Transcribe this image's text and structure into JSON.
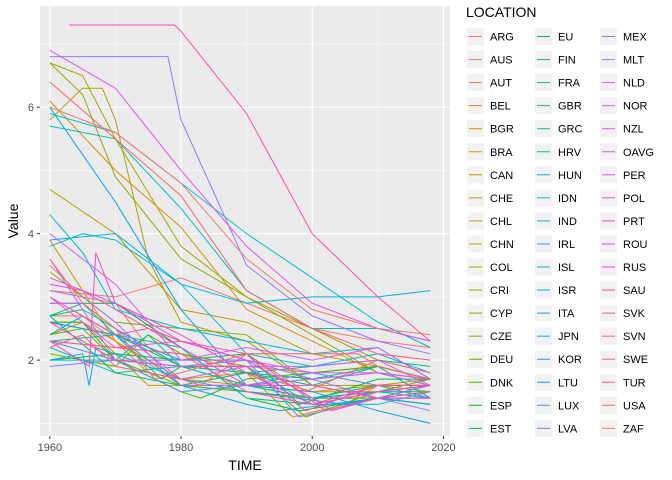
{
  "chart_data": {
    "type": "line",
    "xlabel": "TIME",
    "ylabel": "Value",
    "legend_title": "LOCATION",
    "legend_position": "right",
    "xlim": [
      1958.5,
      2021
    ],
    "ylim": [
      0.8,
      7.6
    ],
    "x_ticks": [
      1960,
      1980,
      2000,
      2020
    ],
    "y_ticks": [
      2,
      4,
      6
    ],
    "background": "#EBEBEB",
    "grid": true,
    "series": [
      {
        "name": "ARG",
        "color": "#F8766D",
        "x": [
          1960,
          1970,
          1980,
          1990,
          2000,
          2010,
          2018
        ],
        "y": [
          3.1,
          3.0,
          3.3,
          2.9,
          2.5,
          2.3,
          2.2
        ]
      },
      {
        "name": "AUS",
        "color": "#F37B59",
        "x": [
          1960,
          1965,
          1970,
          1975,
          1980,
          1990,
          2000,
          2010,
          2018
        ],
        "y": [
          3.5,
          3.0,
          2.9,
          2.2,
          1.9,
          1.9,
          1.8,
          1.9,
          1.7
        ]
      },
      {
        "name": "AUT",
        "color": "#ED813E",
        "x": [
          1960,
          1965,
          1970,
          1980,
          1990,
          2000,
          2010,
          2018
        ],
        "y": [
          2.7,
          2.7,
          2.3,
          1.6,
          1.5,
          1.4,
          1.4,
          1.5
        ]
      },
      {
        "name": "BEL",
        "color": "#E7861B",
        "x": [
          1960,
          1965,
          1970,
          1980,
          1990,
          2000,
          2010,
          2018
        ],
        "y": [
          2.6,
          2.6,
          2.3,
          1.7,
          1.6,
          1.7,
          1.8,
          1.6
        ]
      },
      {
        "name": "BGR",
        "color": "#E08B00",
        "x": [
          1960,
          1970,
          1980,
          1990,
          1997,
          2005,
          2010,
          2018
        ],
        "y": [
          2.3,
          2.2,
          2.1,
          1.8,
          1.1,
          1.3,
          1.6,
          1.6
        ]
      },
      {
        "name": "BRA",
        "color": "#D89000",
        "x": [
          1960,
          1970,
          1980,
          1990,
          2000,
          2010,
          2018
        ],
        "y": [
          6.1,
          5.0,
          4.1,
          2.8,
          2.3,
          1.8,
          1.7
        ]
      },
      {
        "name": "CAN",
        "color": "#CF9400",
        "x": [
          1960,
          1965,
          1970,
          1975,
          1980,
          1990,
          2000,
          2010,
          2018
        ],
        "y": [
          3.9,
          3.1,
          2.3,
          1.8,
          1.7,
          1.8,
          1.5,
          1.6,
          1.5
        ]
      },
      {
        "name": "CHE",
        "color": "#C59900",
        "x": [
          1960,
          1965,
          1970,
          1975,
          1980,
          1990,
          2000,
          2010,
          2018
        ],
        "y": [
          2.4,
          2.6,
          2.1,
          1.6,
          1.6,
          1.6,
          1.5,
          1.5,
          1.5
        ]
      },
      {
        "name": "CHL",
        "color": "#BB9D00",
        "x": [
          1960,
          1970,
          1980,
          1990,
          2000,
          2010,
          2018
        ],
        "y": [
          4.7,
          4.0,
          2.8,
          2.6,
          2.1,
          1.9,
          1.7
        ]
      },
      {
        "name": "CHN",
        "color": "#AFA100",
        "x": [
          1960,
          1965,
          1968,
          1970,
          1975,
          1980,
          1990,
          2000,
          2010,
          2018
        ],
        "y": [
          5.8,
          6.3,
          6.3,
          5.8,
          3.6,
          2.6,
          2.3,
          1.6,
          1.6,
          1.7
        ]
      },
      {
        "name": "COL",
        "color": "#A3A500",
        "x": [
          1960,
          1965,
          1970,
          1980,
          1990,
          2000,
          2010,
          2018
        ],
        "y": [
          6.7,
          6.5,
          5.5,
          3.8,
          3.0,
          2.5,
          2.0,
          1.8
        ]
      },
      {
        "name": "CRI",
        "color": "#96A900",
        "x": [
          1960,
          1965,
          1970,
          1980,
          1990,
          2000,
          2010,
          2018
        ],
        "y": [
          6.7,
          6.2,
          4.9,
          3.6,
          3.0,
          2.4,
          1.8,
          1.7
        ]
      },
      {
        "name": "CYP",
        "color": "#86AC00",
        "x": [
          1960,
          1970,
          1980,
          1990,
          2000,
          2010,
          2018
        ],
        "y": [
          3.4,
          2.6,
          2.5,
          2.4,
          1.6,
          1.4,
          1.3
        ]
      },
      {
        "name": "CZE",
        "color": "#74B000",
        "x": [
          1960,
          1970,
          1975,
          1980,
          1990,
          1999,
          2010,
          2018
        ],
        "y": [
          2.1,
          1.9,
          2.4,
          2.1,
          1.9,
          1.1,
          1.5,
          1.7
        ]
      },
      {
        "name": "DEU",
        "color": "#5EB300",
        "x": [
          1960,
          1965,
          1970,
          1980,
          1990,
          2000,
          2010,
          2018
        ],
        "y": [
          2.4,
          2.5,
          2.0,
          1.6,
          1.5,
          1.4,
          1.4,
          1.6
        ]
      },
      {
        "name": "DNK",
        "color": "#3CB500",
        "x": [
          1960,
          1965,
          1970,
          1980,
          1983,
          1990,
          2000,
          2010,
          2018
        ],
        "y": [
          2.6,
          2.6,
          2.0,
          1.5,
          1.4,
          1.7,
          1.8,
          1.9,
          1.7
        ]
      },
      {
        "name": "ESP",
        "color": "#00B81F",
        "x": [
          1960,
          1965,
          1970,
          1980,
          1990,
          1998,
          2010,
          2018
        ],
        "y": [
          2.9,
          2.9,
          2.9,
          2.2,
          1.4,
          1.2,
          1.4,
          1.3
        ]
      },
      {
        "name": "EST",
        "color": "#00BA42",
        "x": [
          1960,
          1970,
          1980,
          1990,
          1998,
          2010,
          2018
        ],
        "y": [
          2.0,
          2.1,
          2.0,
          2.1,
          1.3,
          1.7,
          1.7
        ]
      },
      {
        "name": "EU",
        "color": "#00BC59",
        "x": [
          1960,
          1970,
          1980,
          1990,
          2000,
          2010,
          2018
        ],
        "y": [
          2.6,
          2.4,
          1.9,
          1.6,
          1.4,
          1.6,
          1.6
        ]
      },
      {
        "name": "FIN",
        "color": "#00BD6B",
        "x": [
          1960,
          1970,
          1975,
          1980,
          1990,
          2000,
          2010,
          2018
        ],
        "y": [
          2.7,
          1.8,
          1.7,
          1.6,
          1.8,
          1.7,
          1.9,
          1.4
        ]
      },
      {
        "name": "FRA",
        "color": "#00BF7C",
        "x": [
          1960,
          1965,
          1970,
          1980,
          1990,
          2000,
          2010,
          2018
        ],
        "y": [
          2.7,
          2.8,
          2.5,
          1.9,
          1.8,
          1.9,
          2.0,
          1.9
        ]
      },
      {
        "name": "GBR",
        "color": "#00C08B",
        "x": [
          1960,
          1965,
          1970,
          1977,
          1980,
          1990,
          2000,
          2010,
          2018
        ],
        "y": [
          2.7,
          2.9,
          2.4,
          1.7,
          1.9,
          1.8,
          1.6,
          1.9,
          1.7
        ]
      },
      {
        "name": "GRC",
        "color": "#00C19A",
        "x": [
          1960,
          1970,
          1980,
          1990,
          2000,
          2010,
          2018
        ],
        "y": [
          2.3,
          2.4,
          2.2,
          1.4,
          1.3,
          1.5,
          1.4
        ]
      },
      {
        "name": "HRV",
        "color": "#00C1A7",
        "x": [
          1960,
          1970,
          1980,
          1990,
          2000,
          2010,
          2018
        ],
        "y": [
          2.2,
          1.8,
          1.9,
          1.6,
          1.4,
          1.5,
          1.5
        ]
      },
      {
        "name": "HUN",
        "color": "#00C0B5",
        "x": [
          1960,
          1970,
          1975,
          1980,
          1990,
          2000,
          2010,
          2018
        ],
        "y": [
          2.0,
          2.0,
          2.4,
          1.9,
          1.9,
          1.3,
          1.3,
          1.5
        ]
      },
      {
        "name": "IDN",
        "color": "#00BFC1",
        "x": [
          1960,
          1970,
          1980,
          1990,
          2000,
          2010,
          2018
        ],
        "y": [
          5.7,
          5.5,
          4.4,
          3.1,
          2.5,
          2.5,
          2.3
        ]
      },
      {
        "name": "IND",
        "color": "#00BDCD",
        "x": [
          1960,
          1970,
          1980,
          1990,
          2000,
          2010,
          2018
        ],
        "y": [
          5.9,
          5.6,
          4.8,
          4.0,
          3.3,
          2.6,
          2.2
        ]
      },
      {
        "name": "IRL",
        "color": "#00BAD8",
        "x": [
          1960,
          1965,
          1970,
          1980,
          1990,
          2000,
          2010,
          2018
        ],
        "y": [
          3.8,
          4.0,
          3.9,
          3.2,
          2.1,
          1.9,
          2.1,
          1.8
        ]
      },
      {
        "name": "ISL",
        "color": "#00B6E2",
        "x": [
          1960,
          1965,
          1970,
          1980,
          1990,
          2000,
          2010,
          2018
        ],
        "y": [
          4.3,
          3.7,
          2.8,
          2.5,
          2.3,
          2.1,
          2.2,
          1.7
        ]
      },
      {
        "name": "ISR",
        "color": "#00B2EB",
        "x": [
          1960,
          1970,
          1980,
          1990,
          2000,
          2010,
          2018
        ],
        "y": [
          3.9,
          4.0,
          3.2,
          2.9,
          3.0,
          3.0,
          3.1
        ]
      },
      {
        "name": "ITA",
        "color": "#00ADF3",
        "x": [
          1960,
          1965,
          1970,
          1980,
          1990,
          1995,
          2010,
          2018
        ],
        "y": [
          2.4,
          2.7,
          2.4,
          1.6,
          1.3,
          1.2,
          1.4,
          1.3
        ]
      },
      {
        "name": "JPN",
        "color": "#00A7FA",
        "x": [
          1960,
          1965,
          1966,
          1967,
          1970,
          1980,
          1990,
          2005,
          2010,
          2018
        ],
        "y": [
          2.0,
          2.1,
          1.6,
          2.2,
          2.1,
          1.7,
          1.5,
          1.3,
          1.4,
          1.4
        ]
      },
      {
        "name": "KOR",
        "color": "#00A0FF",
        "x": [
          1960,
          1970,
          1980,
          1990,
          2000,
          2010,
          2018
        ],
        "y": [
          6.0,
          4.5,
          2.8,
          1.6,
          1.5,
          1.2,
          1.0
        ]
      },
      {
        "name": "LTU",
        "color": "#0C98FF",
        "x": [
          1960,
          1970,
          1980,
          1990,
          2000,
          2010,
          2018
        ],
        "y": [
          2.6,
          2.4,
          2.0,
          2.0,
          1.4,
          1.5,
          1.6
        ]
      },
      {
        "name": "LUX",
        "color": "#4D8FFF",
        "x": [
          1960,
          1970,
          1980,
          1990,
          2000,
          2010,
          2018
        ],
        "y": [
          2.3,
          2.0,
          1.5,
          1.6,
          1.8,
          1.6,
          1.4
        ]
      },
      {
        "name": "LVA",
        "color": "#6E86FF",
        "x": [
          1960,
          1970,
          1980,
          1990,
          1998,
          2010,
          2018
        ],
        "y": [
          1.9,
          2.0,
          1.9,
          2.0,
          1.1,
          1.4,
          1.6
        ]
      },
      {
        "name": "MEX",
        "color": "#8B7CFF",
        "x": [
          1960,
          1965,
          1970,
          1975,
          1978,
          1980,
          1990,
          2000,
          2010,
          2018
        ],
        "y": [
          6.8,
          6.8,
          6.8,
          6.8,
          6.8,
          5.8,
          3.5,
          2.7,
          2.3,
          2.1
        ]
      },
      {
        "name": "MLT",
        "color": "#A073FF",
        "x": [
          1960,
          1970,
          1980,
          1990,
          2000,
          2010,
          2018
        ],
        "y": [
          3.6,
          2.0,
          2.0,
          2.0,
          1.7,
          1.4,
          1.2
        ]
      },
      {
        "name": "NLD",
        "color": "#B36AFF",
        "x": [
          1960,
          1965,
          1970,
          1980,
          1990,
          2000,
          2010,
          2018
        ],
        "y": [
          3.1,
          3.0,
          2.6,
          1.6,
          1.6,
          1.7,
          1.8,
          1.6
        ]
      },
      {
        "name": "NOR",
        "color": "#C363FF",
        "x": [
          1960,
          1965,
          1970,
          1980,
          1990,
          2000,
          2010,
          2018
        ],
        "y": [
          2.9,
          2.9,
          2.5,
          1.7,
          1.9,
          1.9,
          2.0,
          1.6
        ]
      },
      {
        "name": "NZL",
        "color": "#D15CFE",
        "x": [
          1960,
          1970,
          1980,
          1990,
          2000,
          2010,
          2018
        ],
        "y": [
          4.0,
          3.2,
          2.0,
          2.2,
          2.0,
          2.2,
          1.7
        ]
      },
      {
        "name": "OAVG",
        "color": "#DC58F5",
        "x": [
          1960,
          1970,
          1980,
          1990,
          2000,
          2010,
          2018
        ],
        "y": [
          3.3,
          2.9,
          2.3,
          2.0,
          1.8,
          1.8,
          1.7
        ]
      },
      {
        "name": "PER",
        "color": "#E650EC",
        "x": [
          1960,
          1970,
          1980,
          1990,
          2000,
          2010,
          2018
        ],
        "y": [
          6.9,
          6.3,
          5.0,
          3.8,
          2.9,
          2.5,
          2.3
        ]
      },
      {
        "name": "POL",
        "color": "#EF4BE1",
        "x": [
          1960,
          1970,
          1980,
          1990,
          2000,
          2003,
          2010,
          2018
        ],
        "y": [
          3.0,
          2.2,
          2.3,
          2.0,
          1.4,
          1.2,
          1.4,
          1.4
        ]
      },
      {
        "name": "PRT",
        "color": "#F546D5",
        "x": [
          1960,
          1965,
          1970,
          1980,
          1990,
          2000,
          2010,
          2018
        ],
        "y": [
          3.2,
          3.1,
          2.8,
          2.2,
          1.6,
          1.6,
          1.4,
          1.4
        ]
      },
      {
        "name": "ROU",
        "color": "#FA46C8",
        "x": [
          1960,
          1966,
          1967,
          1970,
          1980,
          1990,
          2000,
          2010,
          2018
        ],
        "y": [
          2.3,
          1.9,
          3.7,
          2.9,
          2.4,
          1.8,
          1.3,
          1.5,
          1.6
        ]
      },
      {
        "name": "RUS",
        "color": "#FD48BA",
        "x": [
          1960,
          1970,
          1980,
          1990,
          1999,
          2010,
          2018
        ],
        "y": [
          2.6,
          2.0,
          1.9,
          1.9,
          1.2,
          1.6,
          1.6
        ]
      },
      {
        "name": "SAU",
        "color": "#FF4BAC",
        "x": [
          1963,
          1970,
          1979,
          1980,
          1990,
          2000,
          2010,
          2018
        ],
        "y": [
          7.3,
          7.3,
          7.3,
          7.2,
          5.9,
          4.0,
          3.0,
          2.3
        ]
      },
      {
        "name": "SVK",
        "color": "#FF509D",
        "x": [
          1960,
          1970,
          1975,
          1980,
          1990,
          2002,
          2010,
          2018
        ],
        "y": [
          3.0,
          2.4,
          2.5,
          2.3,
          2.1,
          1.2,
          1.4,
          1.5
        ]
      },
      {
        "name": "SVN",
        "color": "#FF568E",
        "x": [
          1960,
          1970,
          1980,
          1990,
          2000,
          2010,
          2018
        ],
        "y": [
          2.3,
          2.2,
          2.1,
          1.5,
          1.3,
          1.6,
          1.6
        ]
      },
      {
        "name": "SWE",
        "color": "#FF5D7E",
        "x": [
          1960,
          1965,
          1970,
          1980,
          1983,
          1990,
          1999,
          2010,
          2018
        ],
        "y": [
          2.2,
          2.4,
          1.9,
          1.7,
          1.6,
          2.1,
          1.5,
          2.0,
          1.8
        ]
      },
      {
        "name": "TUR",
        "color": "#FE636F",
        "x": [
          1960,
          1970,
          1980,
          1990,
          2000,
          2010,
          2018
        ],
        "y": [
          6.4,
          5.5,
          4.6,
          3.1,
          2.5,
          2.1,
          2.0
        ]
      },
      {
        "name": "USA",
        "color": "#FC6960",
        "x": [
          1960,
          1965,
          1970,
          1976,
          1980,
          1990,
          2007,
          2010,
          2018
        ],
        "y": [
          3.6,
          2.9,
          2.5,
          1.7,
          1.8,
          2.1,
          2.1,
          1.9,
          1.7
        ]
      },
      {
        "name": "ZAF",
        "color": "#F8766D",
        "x": [
          1960,
          1970,
          1980,
          1990,
          2000,
          2010,
          2018
        ],
        "y": [
          6.0,
          5.6,
          4.8,
          3.6,
          2.8,
          2.5,
          2.4
        ]
      }
    ]
  }
}
